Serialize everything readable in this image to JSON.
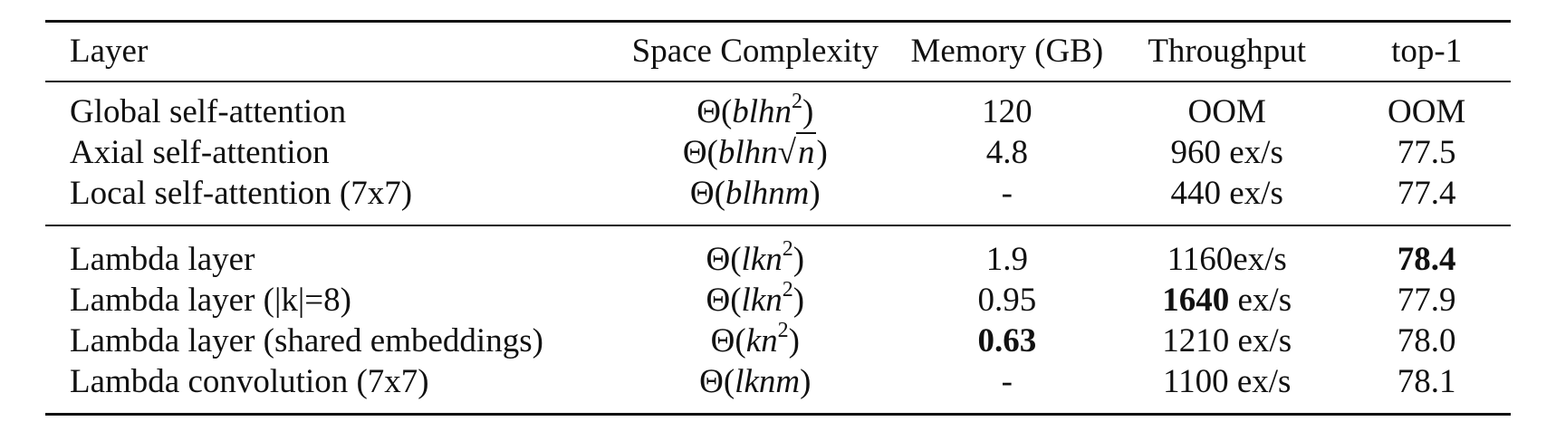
{
  "headers": [
    "Layer",
    "Space Complexity",
    "Memory (GB)",
    "Throughput",
    "top-1"
  ],
  "rows": [
    {
      "layer": "Global self-attention",
      "complexity": "Θ(blhn²)",
      "memory": "120",
      "throughput": "OOM",
      "top1": "OOM"
    },
    {
      "layer": "Axial self-attention",
      "complexity": "Θ(blhn√n)",
      "memory": "4.8",
      "throughput": "960 ex/s",
      "top1": "77.5"
    },
    {
      "layer": "Local self-attention (7x7)",
      "complexity": "Θ(blhnm)",
      "memory": "-",
      "throughput": "440 ex/s",
      "top1": "77.4"
    },
    {
      "layer": "Lambda layer",
      "complexity": "Θ(lkn²)",
      "memory": "1.9",
      "throughput": "1160ex/s",
      "top1": "78.4"
    },
    {
      "layer": "Lambda layer (|k|=8)",
      "complexity": "Θ(lkn²)",
      "memory": "0.95",
      "throughput_bold": "1640",
      "throughput_rest": " ex/s",
      "top1": "77.9"
    },
    {
      "layer": "Lambda layer (shared embeddings)",
      "complexity": "Θ(kn²)",
      "memory": "0.63",
      "throughput": "1210 ex/s",
      "top1": "78.0"
    },
    {
      "layer": "Lambda convolution (7x7)",
      "complexity": "Θ(lknm)",
      "memory": "-",
      "throughput": "1100 ex/s",
      "top1": "78.1"
    }
  ]
}
